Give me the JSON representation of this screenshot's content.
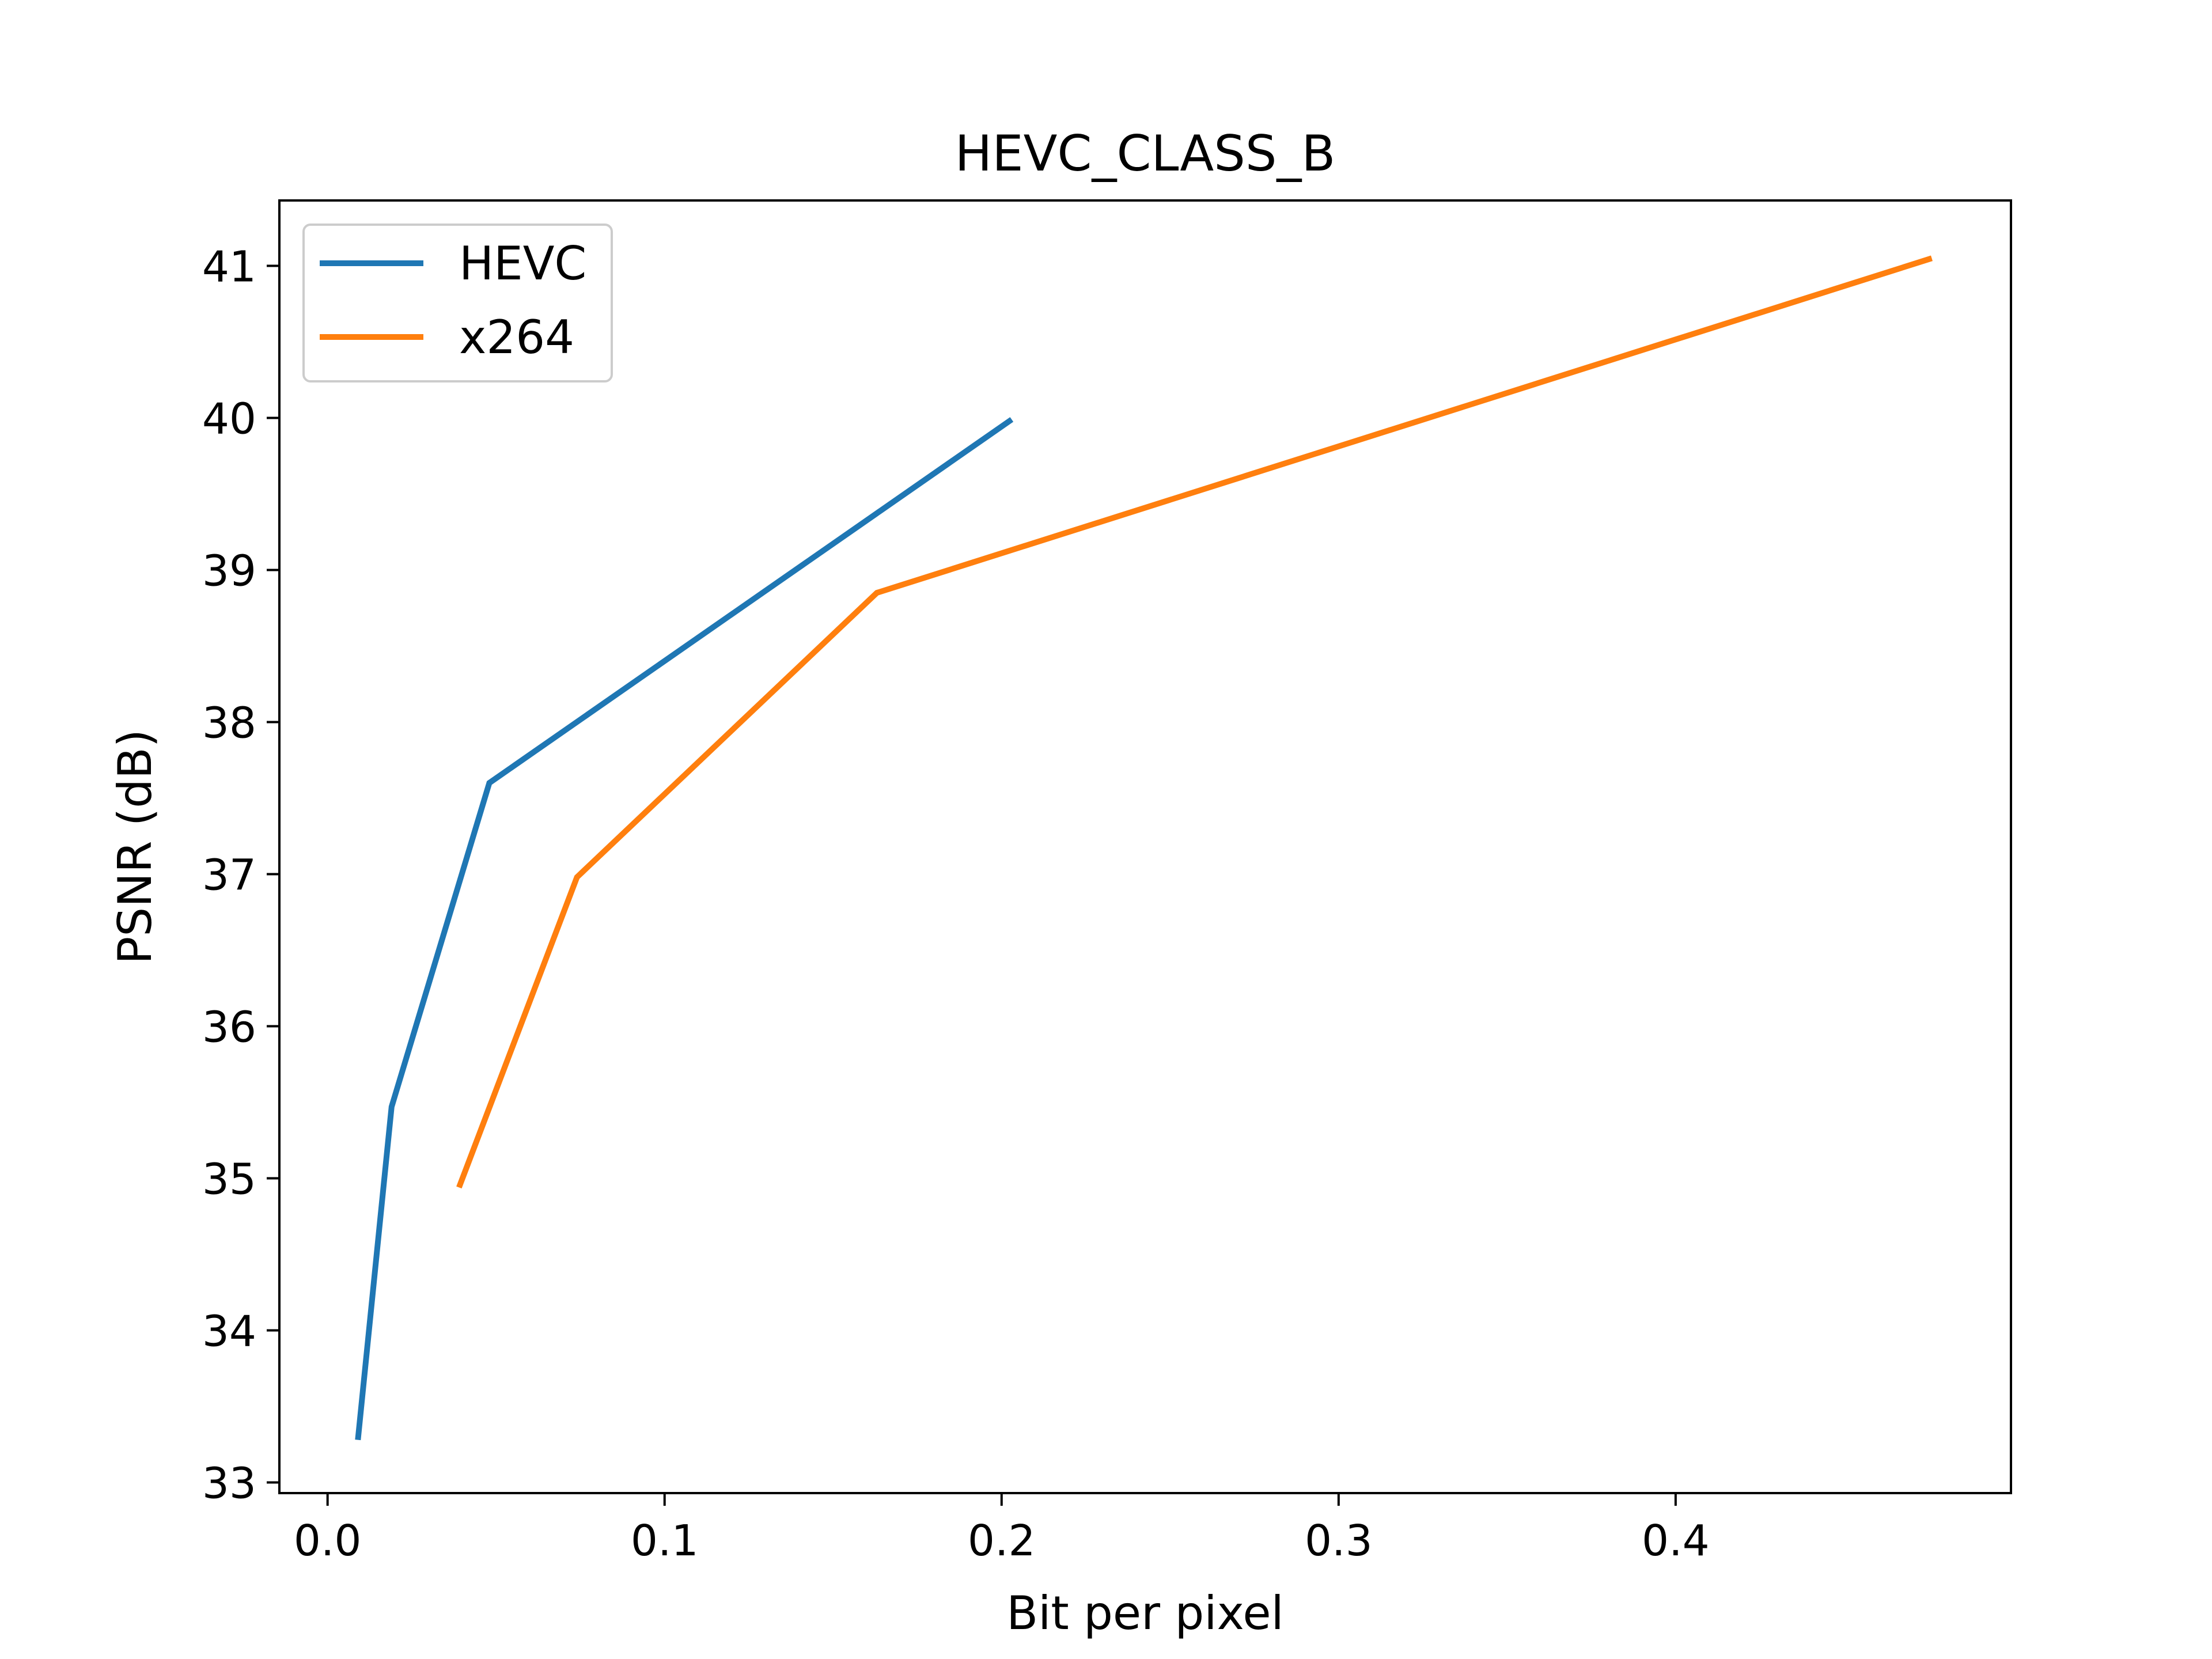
{
  "chart_data": {
    "type": "line",
    "title": "HEVC_CLASS_B",
    "xlabel": "Bit per pixel",
    "ylabel": "PSNR (dB)",
    "xlim": [
      -0.0143,
      0.4995
    ],
    "ylim": [
      32.93,
      41.43
    ],
    "x_ticks": [
      0.0,
      0.1,
      0.2,
      0.3,
      0.4
    ],
    "x_tick_labels": [
      "0.0",
      "0.1",
      "0.2",
      "0.3",
      "0.4"
    ],
    "y_ticks": [
      33,
      34,
      35,
      36,
      37,
      38,
      39,
      40,
      41
    ],
    "y_tick_labels": [
      "33",
      "34",
      "35",
      "36",
      "37",
      "38",
      "39",
      "40",
      "41"
    ],
    "grid": false,
    "legend_position": "top-left",
    "series": [
      {
        "name": "HEVC",
        "color": "#1f77b4",
        "x": [
          0.009,
          0.019,
          0.048,
          0.203
        ],
        "y": [
          33.28,
          35.47,
          37.6,
          39.99
        ]
      },
      {
        "name": "x264",
        "color": "#ff7f0e",
        "x": [
          0.039,
          0.074,
          0.163,
          0.476
        ],
        "y": [
          34.94,
          36.98,
          38.85,
          41.05
        ]
      }
    ]
  }
}
